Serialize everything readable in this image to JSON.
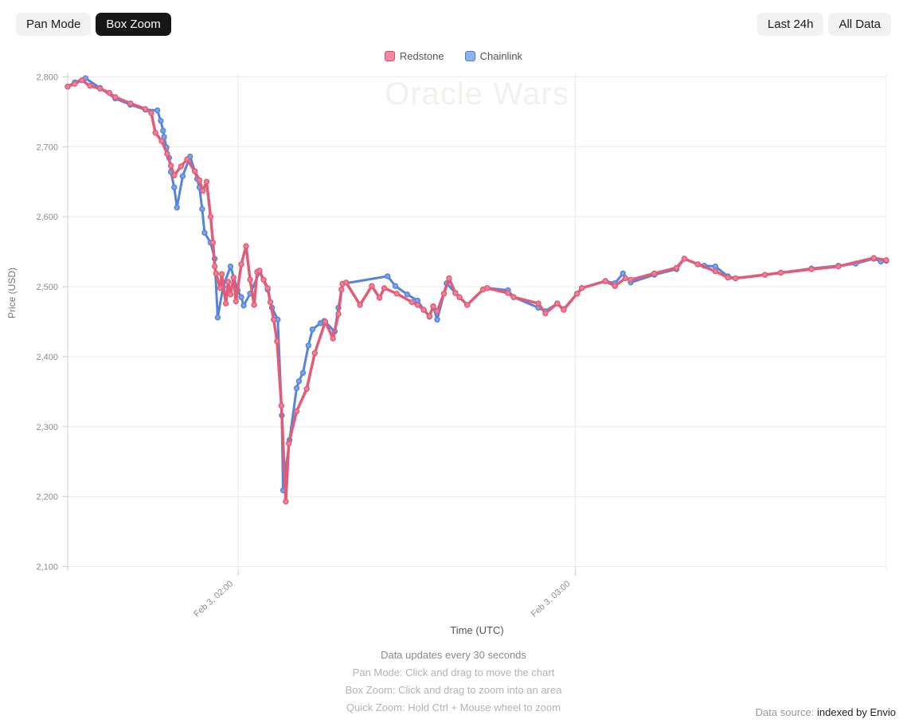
{
  "toolbar": {
    "pan_mode": "Pan Mode",
    "box_zoom": "Box Zoom",
    "last_24h": "Last 24h",
    "all_data": "All Data"
  },
  "legend": [
    {
      "label": "Redstone",
      "border": "#e0486b",
      "fill": "#ef8ba1"
    },
    {
      "label": "Chainlink",
      "border": "#4c7ed8",
      "fill": "#92b2ec"
    }
  ],
  "watermark": "Oracle Wars",
  "footer": {
    "line1": "Data updates every 30 seconds",
    "line2": "Pan Mode: Click and drag to move the chart",
    "line3": "Box Zoom: Click and drag to zoom into an area",
    "line4": "Quick Zoom: Hold Ctrl + Mouse wheel to zoom"
  },
  "data_source": {
    "prefix": "Data source: ",
    "link": "indexed by Envio"
  },
  "chart_data": {
    "type": "line",
    "title": "Oracle Wars",
    "xlabel": "Time (UTC)",
    "ylabel": "Price (USD)",
    "grid": true,
    "legend_position": "top",
    "x_unit": "decimal hours UTC on Feb 3",
    "xlim": [
      1.494,
      3.922
    ],
    "ylim": [
      2095,
      2805
    ],
    "x_ticks": [
      {
        "value": 2.0,
        "label": "Feb 3, 02:00"
      },
      {
        "value": 3.0,
        "label": "Feb 3, 03:00"
      }
    ],
    "y_ticks": [
      {
        "value": 2100,
        "label": "2,100"
      },
      {
        "value": 2200,
        "label": "2,200"
      },
      {
        "value": 2300,
        "label": "2,300"
      },
      {
        "value": 2400,
        "label": "2,400"
      },
      {
        "value": 2500,
        "label": "2,500"
      },
      {
        "value": 2600,
        "label": "2,600"
      },
      {
        "value": 2700,
        "label": "2,700"
      },
      {
        "value": 2800,
        "label": "2,800"
      }
    ],
    "series": [
      {
        "name": "Chainlink",
        "color": "#5585db",
        "marker_fill": "#7da3e6",
        "line_width": 3,
        "points": [
          [
            1.494,
            2786
          ],
          [
            1.515,
            2792
          ],
          [
            1.547,
            2798
          ],
          [
            1.59,
            2784
          ],
          [
            1.635,
            2769
          ],
          [
            1.68,
            2760
          ],
          [
            1.724,
            2753
          ],
          [
            1.76,
            2752
          ],
          [
            1.77,
            2737
          ],
          [
            1.777,
            2723
          ],
          [
            1.78,
            2714
          ],
          [
            1.787,
            2699
          ],
          [
            1.795,
            2684
          ],
          [
            1.8,
            2664
          ],
          [
            1.81,
            2642
          ],
          [
            1.818,
            2613
          ],
          [
            1.835,
            2658
          ],
          [
            1.857,
            2686
          ],
          [
            1.871,
            2665
          ],
          [
            1.878,
            2654
          ],
          [
            1.885,
            2642
          ],
          [
            1.893,
            2611
          ],
          [
            1.9,
            2577
          ],
          [
            1.918,
            2563
          ],
          [
            1.93,
            2540
          ],
          [
            1.939,
            2456
          ],
          [
            1.955,
            2500
          ],
          [
            1.977,
            2529
          ],
          [
            1.998,
            2495
          ],
          [
            2.009,
            2485
          ],
          [
            2.016,
            2473
          ],
          [
            2.035,
            2490
          ],
          [
            2.063,
            2521
          ],
          [
            2.087,
            2496
          ],
          [
            2.1,
            2470
          ],
          [
            2.117,
            2453
          ],
          [
            2.129,
            2316
          ],
          [
            2.133,
            2209
          ],
          [
            2.152,
            2281
          ],
          [
            2.173,
            2355
          ],
          [
            2.18,
            2365
          ],
          [
            2.192,
            2377
          ],
          [
            2.208,
            2416
          ],
          [
            2.22,
            2439
          ],
          [
            2.244,
            2448
          ],
          [
            2.255,
            2451
          ],
          [
            2.286,
            2436
          ],
          [
            2.297,
            2470
          ],
          [
            2.309,
            2504
          ],
          [
            2.443,
            2515
          ],
          [
            2.466,
            2501
          ],
          [
            2.501,
            2489
          ],
          [
            2.532,
            2480
          ],
          [
            2.55,
            2467
          ],
          [
            2.567,
            2457
          ],
          [
            2.578,
            2472
          ],
          [
            2.59,
            2453
          ],
          [
            2.61,
            2490
          ],
          [
            2.618,
            2505
          ],
          [
            2.644,
            2491
          ],
          [
            2.656,
            2485
          ],
          [
            2.679,
            2474
          ],
          [
            2.726,
            2496
          ],
          [
            2.738,
            2498
          ],
          [
            2.8,
            2495
          ],
          [
            2.817,
            2485
          ],
          [
            2.89,
            2470
          ],
          [
            2.911,
            2465
          ],
          [
            2.946,
            2476
          ],
          [
            2.965,
            2468
          ],
          [
            3.005,
            2490
          ],
          [
            3.019,
            2498
          ],
          [
            3.089,
            2508
          ],
          [
            3.117,
            2505
          ],
          [
            3.141,
            2519
          ],
          [
            3.164,
            2506
          ],
          [
            3.234,
            2517
          ],
          [
            3.3,
            2525
          ],
          [
            3.323,
            2540
          ],
          [
            3.363,
            2532
          ],
          [
            3.382,
            2530
          ],
          [
            3.415,
            2529
          ],
          [
            3.452,
            2515
          ],
          [
            3.475,
            2512
          ],
          [
            3.562,
            2517
          ],
          [
            3.609,
            2520
          ],
          [
            3.7,
            2526
          ],
          [
            3.78,
            2530
          ],
          [
            3.831,
            2533
          ],
          [
            3.885,
            2540
          ],
          [
            3.906,
            2536
          ],
          [
            3.922,
            2537
          ]
        ]
      },
      {
        "name": "Redstone",
        "color": "#e25c77",
        "marker_fill": "#ea8399",
        "line_width": 3.5,
        "points": [
          [
            1.494,
            2786
          ],
          [
            1.515,
            2790
          ],
          [
            1.536,
            2795
          ],
          [
            1.56,
            2787
          ],
          [
            1.59,
            2783
          ],
          [
            1.618,
            2777
          ],
          [
            1.635,
            2771
          ],
          [
            1.68,
            2762
          ],
          [
            1.724,
            2754
          ],
          [
            1.742,
            2748
          ],
          [
            1.754,
            2720
          ],
          [
            1.773,
            2708
          ],
          [
            1.789,
            2690
          ],
          [
            1.8,
            2673
          ],
          [
            1.81,
            2659
          ],
          [
            1.83,
            2672
          ],
          [
            1.848,
            2682
          ],
          [
            1.871,
            2665
          ],
          [
            1.885,
            2652
          ],
          [
            1.895,
            2637
          ],
          [
            1.906,
            2650
          ],
          [
            1.918,
            2600
          ],
          [
            1.925,
            2563
          ],
          [
            1.93,
            2529
          ],
          [
            1.934,
            2519
          ],
          [
            1.946,
            2498
          ],
          [
            1.951,
            2518
          ],
          [
            1.963,
            2476
          ],
          [
            1.97,
            2507
          ],
          [
            1.977,
            2489
          ],
          [
            1.986,
            2513
          ],
          [
            1.993,
            2479
          ],
          [
            2.009,
            2532
          ],
          [
            2.023,
            2558
          ],
          [
            2.035,
            2510
          ],
          [
            2.047,
            2474
          ],
          [
            2.056,
            2521
          ],
          [
            2.063,
            2523
          ],
          [
            2.075,
            2510
          ],
          [
            2.087,
            2498
          ],
          [
            2.095,
            2478
          ],
          [
            2.105,
            2453
          ],
          [
            2.115,
            2422
          ],
          [
            2.128,
            2330
          ],
          [
            2.141,
            2193
          ],
          [
            2.15,
            2276
          ],
          [
            2.173,
            2322
          ],
          [
            2.203,
            2354
          ],
          [
            2.227,
            2405
          ],
          [
            2.258,
            2450
          ],
          [
            2.281,
            2426
          ],
          [
            2.297,
            2461
          ],
          [
            2.306,
            2496
          ],
          [
            2.309,
            2504
          ],
          [
            2.32,
            2506
          ],
          [
            2.361,
            2474
          ],
          [
            2.396,
            2501
          ],
          [
            2.419,
            2484
          ],
          [
            2.433,
            2498
          ],
          [
            2.47,
            2490
          ],
          [
            2.515,
            2478
          ],
          [
            2.532,
            2474
          ],
          [
            2.55,
            2467
          ],
          [
            2.567,
            2458
          ],
          [
            2.578,
            2472
          ],
          [
            2.59,
            2465
          ],
          [
            2.61,
            2490
          ],
          [
            2.625,
            2512
          ],
          [
            2.644,
            2491
          ],
          [
            2.656,
            2485
          ],
          [
            2.679,
            2474
          ],
          [
            2.726,
            2496
          ],
          [
            2.738,
            2498
          ],
          [
            2.8,
            2491
          ],
          [
            2.817,
            2485
          ],
          [
            2.89,
            2476
          ],
          [
            2.911,
            2462
          ],
          [
            2.946,
            2476
          ],
          [
            2.965,
            2467
          ],
          [
            3.005,
            2490
          ],
          [
            3.019,
            2498
          ],
          [
            3.089,
            2508
          ],
          [
            3.117,
            2501
          ],
          [
            3.148,
            2512
          ],
          [
            3.164,
            2510
          ],
          [
            3.234,
            2519
          ],
          [
            3.3,
            2527
          ],
          [
            3.323,
            2540
          ],
          [
            3.363,
            2532
          ],
          [
            3.415,
            2522
          ],
          [
            3.452,
            2513
          ],
          [
            3.475,
            2512
          ],
          [
            3.562,
            2517
          ],
          [
            3.609,
            2520
          ],
          [
            3.7,
            2525
          ],
          [
            3.78,
            2529
          ],
          [
            3.885,
            2541
          ],
          [
            3.922,
            2538
          ]
        ]
      }
    ]
  }
}
